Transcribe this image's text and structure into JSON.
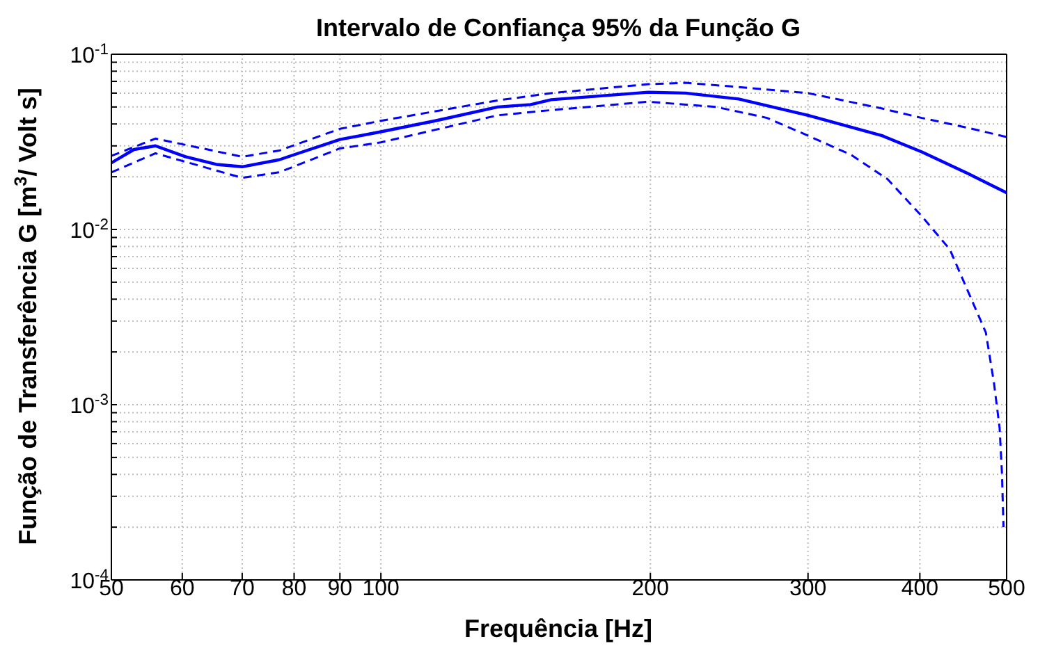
{
  "chart_data": {
    "type": "line",
    "title": "Intervalo de Confiança 95% da Função G",
    "xlabel": "Frequência [Hz]",
    "ylabel": "Função de Transferência G [m$^{3}$/ Volt s]",
    "log": "xy",
    "grid": true,
    "xlim": [
      50,
      500
    ],
    "xticks": [
      50,
      60,
      70,
      80,
      90,
      100,
      200,
      300,
      400,
      500
    ],
    "ylim": [
      0.0001,
      0.1
    ],
    "yticks": [
      {
        "value": 0.0001,
        "label": "10$^{-4}$"
      },
      {
        "value": 0.0002,
        "label": null
      },
      {
        "value": 0.0003,
        "label": null
      },
      {
        "value": 0.0004,
        "label": null
      },
      {
        "value": 0.0005,
        "label": null
      },
      {
        "value": 0.0006,
        "label": null
      },
      {
        "value": 0.0007,
        "label": null
      },
      {
        "value": 0.0008,
        "label": null
      },
      {
        "value": 0.0009,
        "label": null
      },
      {
        "value": 0.001,
        "label": "10$^{-3}$"
      },
      {
        "value": 0.002,
        "label": null
      },
      {
        "value": 0.003,
        "label": null
      },
      {
        "value": 0.004,
        "label": null
      },
      {
        "value": 0.005,
        "label": null
      },
      {
        "value": 0.006,
        "label": null
      },
      {
        "value": 0.007,
        "label": null
      },
      {
        "value": 0.008,
        "label": null
      },
      {
        "value": 0.009,
        "label": null
      },
      {
        "value": 0.01,
        "label": "10$^{-2}$"
      },
      {
        "value": 0.02,
        "label": null
      },
      {
        "value": 0.03,
        "label": null
      },
      {
        "value": 0.04,
        "label": null
      },
      {
        "value": 0.05,
        "label": null
      },
      {
        "value": 0.06,
        "label": null
      },
      {
        "value": 0.07,
        "label": null
      },
      {
        "value": 0.08,
        "label": null
      },
      {
        "value": 0.09,
        "label": null
      },
      {
        "value": 0.1,
        "label": "10$^{-1}$"
      }
    ],
    "series": [
      {
        "color": "#0000ff",
        "line_style": "solid",
        "x": [
          50,
          53,
          56,
          60.5,
          65.5,
          70,
          77,
          80,
          90,
          100,
          115,
          135,
          147,
          155,
          199,
          219,
          251,
          300,
          363,
          402,
          453,
          500
        ],
        "values": [
          0.024,
          0.0286,
          0.03,
          0.026,
          0.0235,
          0.0228,
          0.025,
          0.0267,
          0.0326,
          0.0361,
          0.0417,
          0.05,
          0.0516,
          0.055,
          0.0607,
          0.06,
          0.0555,
          0.0448,
          0.0343,
          0.0277,
          0.0208,
          0.0162
        ]
      },
      {
        "color": "#0000ff",
        "line_style": "dashed",
        "x": [
          50,
          56,
          70,
          77,
          90,
          100,
          135,
          155,
          199,
          219,
          251,
          300,
          363,
          402,
          453,
          500
        ],
        "values": [
          0.0263,
          0.033,
          0.026,
          0.0282,
          0.0375,
          0.0417,
          0.0545,
          0.06,
          0.0675,
          0.0687,
          0.065,
          0.06,
          0.049,
          0.0433,
          0.038,
          0.0337
        ]
      },
      {
        "color": "#0000ff",
        "line_style": "dashed",
        "x": [
          50,
          56,
          70,
          77,
          90,
          100,
          135,
          155,
          199,
          237,
          270,
          300,
          335,
          368,
          402,
          432,
          453,
          474,
          484,
          491,
          494,
          496
        ],
        "values": [
          0.0212,
          0.0272,
          0.0197,
          0.0212,
          0.029,
          0.0314,
          0.0448,
          0.048,
          0.0536,
          0.05,
          0.0433,
          0.0343,
          0.0267,
          0.0194,
          0.0119,
          0.0077,
          0.0044,
          0.00258,
          0.00133,
          0.00074,
          0.00041,
          0.0002
        ]
      }
    ]
  }
}
